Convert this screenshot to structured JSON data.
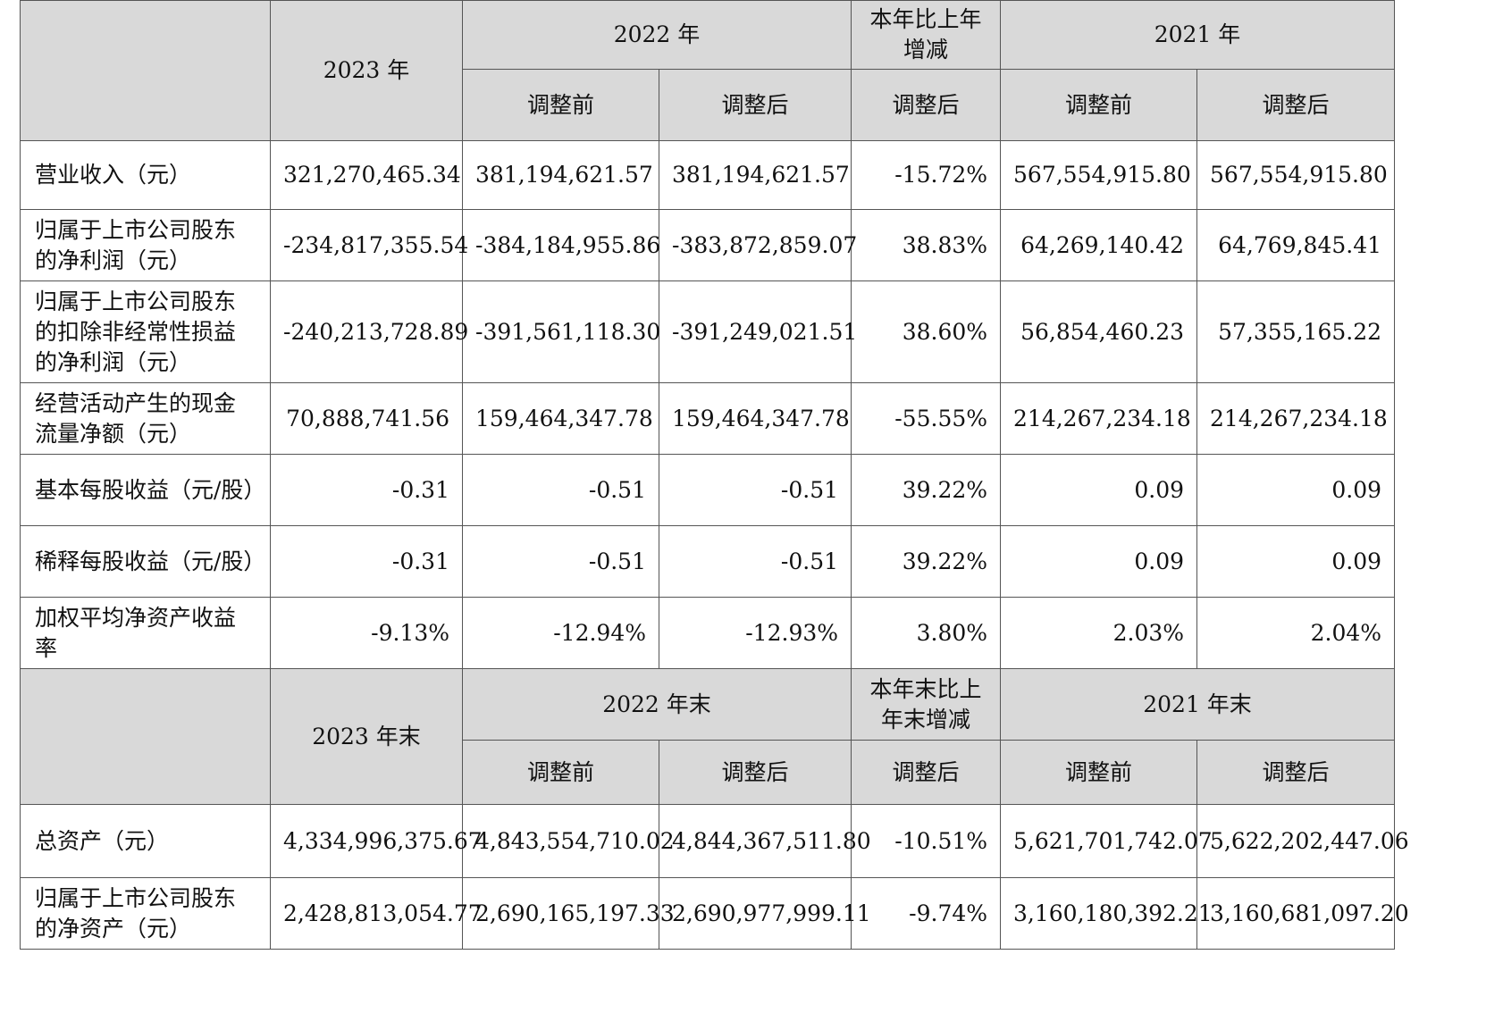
{
  "header1": {
    "col_2023": "2023 年",
    "col_2022": "2022 年",
    "col_change": "本年比上年增减",
    "col_2021": "2021 年",
    "before": "调整前",
    "after": "调整后",
    "change_after": "调整后",
    "before_2021": "调整前",
    "after_2021": "调整后"
  },
  "rows1": [
    {
      "label": "营业收入（元）",
      "v2023": "321,270,465.34",
      "v2022b": "381,194,621.57",
      "v2022a": "381,194,621.57",
      "chg": "-15.72%",
      "v2021b": "567,554,915.80",
      "v2021a": "567,554,915.80"
    },
    {
      "label": "归属于上市公司股东的净利润（元）",
      "v2023": "-234,817,355.54",
      "v2022b": "-384,184,955.86",
      "v2022a": "-383,872,859.07",
      "chg": "38.83%",
      "v2021b": "64,269,140.42",
      "v2021a": "64,769,845.41"
    },
    {
      "label": "归属于上市公司股东的扣除非经常性损益的净利润（元）",
      "v2023": "-240,213,728.89",
      "v2022b": "-391,561,118.30",
      "v2022a": "-391,249,021.51",
      "chg": "38.60%",
      "v2021b": "56,854,460.23",
      "v2021a": "57,355,165.22"
    },
    {
      "label": "经营活动产生的现金流量净额（元）",
      "v2023": "70,888,741.56",
      "v2022b": "159,464,347.78",
      "v2022a": "159,464,347.78",
      "chg": "-55.55%",
      "v2021b": "214,267,234.18",
      "v2021a": "214,267,234.18"
    },
    {
      "label": "基本每股收益（元/股）",
      "v2023": "-0.31",
      "v2022b": "-0.51",
      "v2022a": "-0.51",
      "chg": "39.22%",
      "v2021b": "0.09",
      "v2021a": "0.09"
    },
    {
      "label": "稀释每股收益（元/股）",
      "v2023": "-0.31",
      "v2022b": "-0.51",
      "v2022a": "-0.51",
      "chg": "39.22%",
      "v2021b": "0.09",
      "v2021a": "0.09"
    },
    {
      "label": "加权平均净资产收益率",
      "v2023": "-9.13%",
      "v2022b": "-12.94%",
      "v2022a": "-12.93%",
      "chg": "3.80%",
      "v2021b": "2.03%",
      "v2021a": "2.04%"
    }
  ],
  "header2": {
    "col_2023": "2023 年末",
    "col_2022": "2022 年末",
    "col_change": "本年末比上年末增减",
    "col_2021": "2021 年末",
    "before": "调整前",
    "after": "调整后",
    "change_after": "调整后",
    "before_2021": "调整前",
    "after_2021": "调整后"
  },
  "rows2": [
    {
      "label": "总资产（元）",
      "v2023": "4,334,996,375.67",
      "v2022b": "4,843,554,710.02",
      "v2022a": "4,844,367,511.80",
      "chg": "-10.51%",
      "v2021b": "5,621,701,742.07",
      "v2021a": "5,622,202,447.06"
    },
    {
      "label": "归属于上市公司股东的净资产（元）",
      "v2023": "2,428,813,054.77",
      "v2022b": "2,690,165,197.33",
      "v2022a": "2,690,977,999.11",
      "chg": "-9.74%",
      "v2021b": "3,160,180,392.21",
      "v2021a": "3,160,681,097.20"
    }
  ]
}
